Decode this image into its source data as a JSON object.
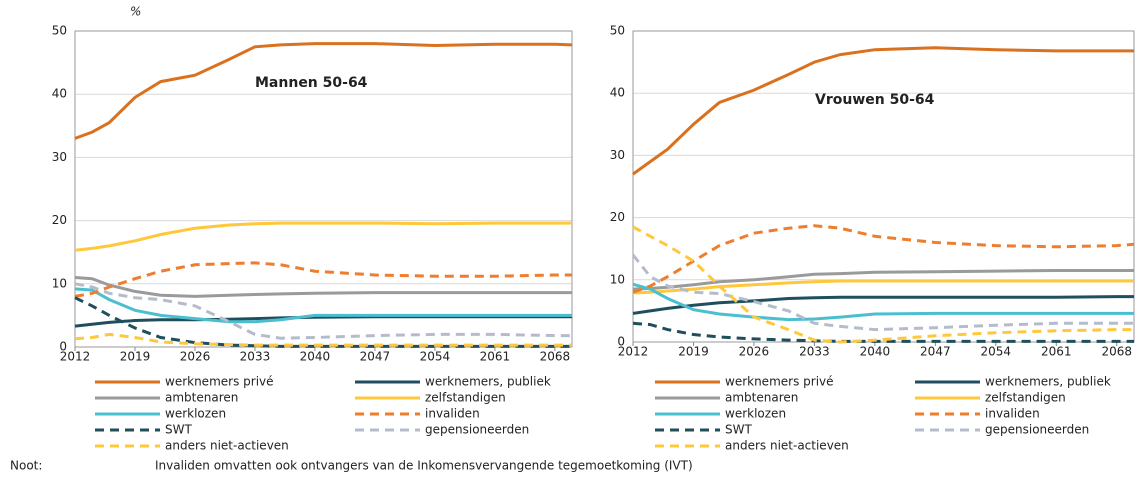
{
  "chart_data": [
    {
      "type": "line",
      "ylabel": "%",
      "annotation": "Mannen 50-64",
      "x": [
        2012,
        2014,
        2016,
        2019,
        2022,
        2026,
        2030,
        2033,
        2036,
        2040,
        2047,
        2054,
        2061,
        2068,
        2070
      ],
      "xlim": [
        2012,
        2070
      ],
      "xticks": [
        2012,
        2019,
        2026,
        2033,
        2040,
        2047,
        2054,
        2061,
        2068
      ],
      "ylim": [
        0,
        50
      ],
      "yticks": [
        0,
        10,
        20,
        30,
        40,
        50
      ],
      "grid": true,
      "series": [
        {
          "name": "werknemers privé",
          "color": "#d9711f",
          "style": "solid",
          "values": [
            33,
            34,
            35.5,
            39.5,
            42,
            43,
            45.5,
            47.5,
            47.8,
            48,
            48,
            47.7,
            47.9,
            47.9,
            47.8
          ]
        },
        {
          "name": "werknemers, publiek",
          "color": "#1f4e5f",
          "style": "solid",
          "values": [
            3.3,
            3.6,
            3.9,
            4.2,
            4.3,
            4.3,
            4.4,
            4.5,
            4.6,
            4.7,
            4.8,
            4.8,
            4.8,
            4.8,
            4.8
          ]
        },
        {
          "name": "ambtenaren",
          "color": "#9a9a9a",
          "style": "solid",
          "values": [
            11,
            10.8,
            9.8,
            8.8,
            8.2,
            8,
            8.2,
            8.3,
            8.4,
            8.5,
            8.6,
            8.6,
            8.6,
            8.6,
            8.6
          ]
        },
        {
          "name": "zelfstandigen",
          "color": "#ffc83c",
          "style": "solid",
          "values": [
            15.3,
            15.6,
            16,
            16.8,
            17.8,
            18.8,
            19.3,
            19.5,
            19.6,
            19.6,
            19.6,
            19.5,
            19.6,
            19.6,
            19.6
          ]
        },
        {
          "name": "werklozen",
          "color": "#4bbfd0",
          "style": "solid",
          "values": [
            9.2,
            9,
            7.5,
            5.8,
            5,
            4.5,
            4,
            4,
            4.3,
            5,
            5,
            5,
            5,
            5,
            5
          ]
        },
        {
          "name": "invaliden",
          "color": "#ef7d2e",
          "style": "dashed",
          "values": [
            8,
            8.5,
            9.5,
            10.8,
            12,
            13,
            13.2,
            13.3,
            13,
            12,
            11.4,
            11.2,
            11.2,
            11.4,
            11.4
          ]
        },
        {
          "name": "SWT",
          "color": "#1f4e5f",
          "style": "dashed",
          "values": [
            7.8,
            6.5,
            5,
            3,
            1.5,
            0.7,
            0.3,
            0.2,
            0.1,
            0.1,
            0.1,
            0.1,
            0.1,
            0.1,
            0.1
          ]
        },
        {
          "name": "gepensioneerden",
          "color": "#b4bccb",
          "style": "dashed",
          "values": [
            10,
            9.5,
            8.5,
            7.8,
            7.5,
            6.5,
            4,
            2,
            1.4,
            1.5,
            1.8,
            2,
            2,
            1.8,
            1.8
          ]
        },
        {
          "name": "anders niet-actieven",
          "color": "#ffc83c",
          "style": "dashed",
          "values": [
            1.3,
            1.5,
            2,
            1.5,
            0.8,
            0.5,
            0.4,
            0.3,
            0.3,
            0.3,
            0.3,
            0.3,
            0.3,
            0.3,
            0.3
          ]
        }
      ]
    },
    {
      "type": "line",
      "annotation": "Vrouwen 50-64",
      "x": [
        2012,
        2014,
        2016,
        2019,
        2022,
        2026,
        2030,
        2033,
        2036,
        2040,
        2047,
        2054,
        2061,
        2068,
        2070
      ],
      "xlim": [
        2012,
        2070
      ],
      "xticks": [
        2012,
        2019,
        2026,
        2033,
        2040,
        2047,
        2054,
        2061,
        2068
      ],
      "ylim": [
        0,
        50
      ],
      "yticks": [
        0,
        10,
        20,
        30,
        40,
        50
      ],
      "grid": true,
      "series": [
        {
          "name": "werknemers privé",
          "color": "#d9711f",
          "style": "solid",
          "values": [
            27,
            29,
            31,
            35,
            38.5,
            40.5,
            43,
            45,
            46.2,
            47,
            47.3,
            47,
            46.8,
            46.8,
            46.8
          ]
        },
        {
          "name": "werknemers, publiek",
          "color": "#1f4e5f",
          "style": "solid",
          "values": [
            4.6,
            5,
            5.4,
            5.9,
            6.3,
            6.6,
            7,
            7.1,
            7.2,
            7.2,
            7.2,
            7.2,
            7.2,
            7.3,
            7.3
          ]
        },
        {
          "name": "ambtenaren",
          "color": "#9a9a9a",
          "style": "solid",
          "values": [
            8.5,
            8.6,
            8.8,
            9.2,
            9.7,
            10,
            10.5,
            10.9,
            11,
            11.2,
            11.3,
            11.4,
            11.5,
            11.5,
            11.5
          ]
        },
        {
          "name": "zelfstandigen",
          "color": "#ffc83c",
          "style": "solid",
          "values": [
            7.9,
            8,
            8.2,
            8.5,
            8.9,
            9.2,
            9.5,
            9.7,
            9.8,
            9.8,
            9.8,
            9.8,
            9.8,
            9.8,
            9.8
          ]
        },
        {
          "name": "werklozen",
          "color": "#4bbfd0",
          "style": "solid",
          "values": [
            9.3,
            8.5,
            7,
            5.2,
            4.5,
            4,
            3.6,
            3.7,
            4,
            4.5,
            4.6,
            4.6,
            4.6,
            4.6,
            4.6
          ]
        },
        {
          "name": "invaliden",
          "color": "#ef7d2e",
          "style": "dashed",
          "values": [
            8,
            9,
            10.5,
            13,
            15.5,
            17.5,
            18.3,
            18.7,
            18.3,
            17,
            16,
            15.5,
            15.3,
            15.5,
            15.7
          ]
        },
        {
          "name": "SWT",
          "color": "#1f4e5f",
          "style": "dashed",
          "values": [
            3,
            2.8,
            2,
            1.2,
            0.8,
            0.5,
            0.3,
            0.2,
            0.1,
            0.1,
            0.1,
            0.1,
            0.1,
            0.1,
            0.1
          ]
        },
        {
          "name": "gepensioneerden",
          "color": "#b4bccb",
          "style": "dashed",
          "values": [
            14,
            10.5,
            9,
            8,
            7.8,
            6.5,
            5,
            3,
            2.5,
            2,
            2.3,
            2.7,
            3,
            3,
            3
          ]
        },
        {
          "name": "anders niet-actieven",
          "color": "#ffc83c",
          "style": "dashed",
          "values": [
            18.5,
            17,
            15.5,
            13,
            9,
            4,
            2,
            0.3,
            0,
            0.3,
            1,
            1.5,
            1.8,
            2,
            2
          ]
        }
      ]
    }
  ],
  "note": {
    "label": "Noot:",
    "text": "Invaliden omvatten ook ontvangers van de Inkomensvervangende tegemoetkoming (IVT)"
  }
}
